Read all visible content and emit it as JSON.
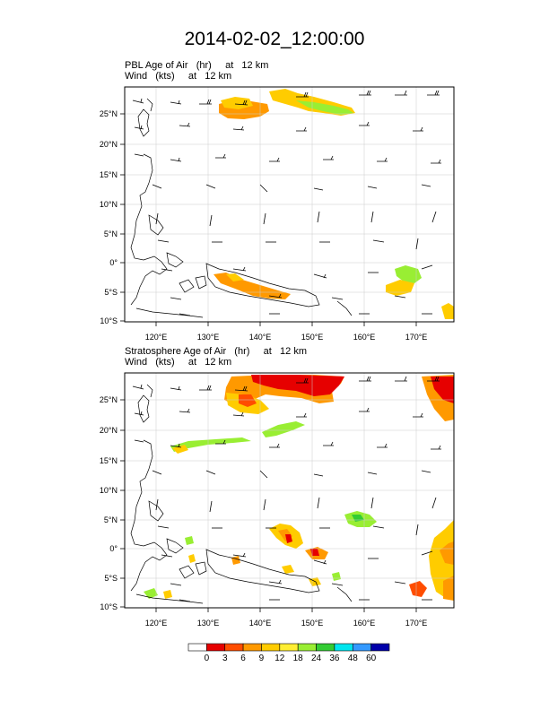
{
  "title": "2014-02-02_12:00:00",
  "panels": [
    {
      "id": "pbl",
      "line1": "PBL Age of Air   (hr)     at   12 km",
      "line2": "Wind   (kts)     at   12 km",
      "lat_labels": [
        "25°N",
        "20°N",
        "15°N",
        "10°N",
        "5°N",
        "0°",
        "5°S",
        "10°S"
      ],
      "lon_labels": [
        "120°E",
        "130°E",
        "140°E",
        "150°E",
        "160°E",
        "170°E"
      ]
    },
    {
      "id": "strat",
      "line1": "Stratosphere Age of Air   (hr)     at   12 km",
      "line2": "Wind   (kts)     at   12 km",
      "lat_labels": [
        "25°N",
        "20°N",
        "15°N",
        "10°N",
        "5°N",
        "0°",
        "5°S",
        "10°S"
      ],
      "lon_labels": [
        "120°E",
        "130°E",
        "140°E",
        "150°E",
        "160°E",
        "170°E"
      ]
    }
  ],
  "colorbar": {
    "labels": [
      "0",
      "3",
      "6",
      "9",
      "12",
      "18",
      "24",
      "36",
      "48",
      "60"
    ],
    "colors": [
      "#ffffff",
      "#e60000",
      "#ff4d00",
      "#ff9900",
      "#ffcc00",
      "#ffee33",
      "#99ee33",
      "#33cc33",
      "#00e5ee",
      "#3399ff",
      "#0000aa"
    ]
  }
}
